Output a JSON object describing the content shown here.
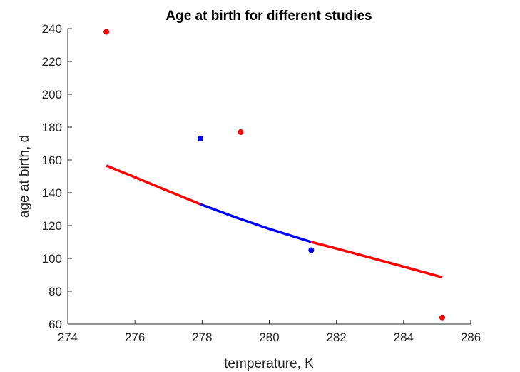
{
  "chart_data": {
    "type": "scatter",
    "title": "Age at birth for different studies",
    "xlabel": "temperature, K",
    "ylabel": "age at birth, d",
    "xlim": [
      274,
      286
    ],
    "ylim": [
      60,
      240
    ],
    "xticks": [
      "274",
      "276",
      "278",
      "280",
      "282",
      "284",
      "286"
    ],
    "yticks": [
      "60",
      "80",
      "100",
      "120",
      "140",
      "160",
      "180",
      "200",
      "220",
      "240"
    ],
    "grid": false,
    "legend": "none",
    "series": [
      {
        "kind": "points",
        "color": "#ff0000",
        "x": [
          275.15,
          279.15,
          285.15
        ],
        "y": [
          238,
          177,
          64
        ]
      },
      {
        "kind": "points",
        "color": "#0000ff",
        "x": [
          277.95,
          281.25
        ],
        "y": [
          173,
          105
        ]
      },
      {
        "kind": "line",
        "color": "#ff0000",
        "x": [
          275.15,
          276.0,
          277.0,
          277.95
        ],
        "y": [
          156.5,
          149.5,
          141.0,
          133.0
        ]
      },
      {
        "kind": "line",
        "color": "#0000ff",
        "x": [
          277.95,
          279.0,
          280.0,
          281.25
        ],
        "y": [
          133.0,
          125.0,
          118.0,
          110.0
        ]
      },
      {
        "kind": "line",
        "color": "#ff0000",
        "x": [
          281.25,
          282.0,
          283.0,
          284.0,
          285.15
        ],
        "y": [
          110.0,
          106.0,
          100.5,
          95.0,
          88.5
        ]
      }
    ]
  }
}
